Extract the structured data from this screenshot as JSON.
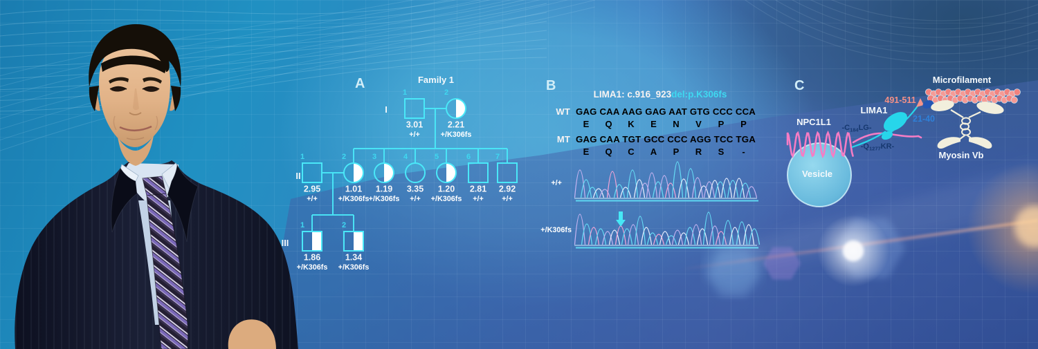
{
  "panels": {
    "a": "A",
    "b": "B",
    "c": "C"
  },
  "pedigree": {
    "title": "Family 1",
    "generations": [
      "I",
      "II",
      "III"
    ],
    "individuals": [
      {
        "gen": 0,
        "num": "1",
        "sex": "male",
        "carrier": false,
        "value": "3.01",
        "genotype": "+/+"
      },
      {
        "gen": 0,
        "num": "2",
        "sex": "female",
        "carrier": true,
        "value": "2.21",
        "genotype": "+/K306fs"
      },
      {
        "gen": 1,
        "num": "1",
        "sex": "male",
        "carrier": false,
        "value": "2.95",
        "genotype": "+/+"
      },
      {
        "gen": 1,
        "num": "2",
        "sex": "female",
        "carrier": true,
        "value": "1.01",
        "genotype": "+/K306fs"
      },
      {
        "gen": 1,
        "num": "3",
        "sex": "female",
        "carrier": true,
        "value": "1.19",
        "genotype": "+/K306fs"
      },
      {
        "gen": 1,
        "num": "4",
        "sex": "female",
        "carrier": false,
        "value": "3.35",
        "genotype": "+/+"
      },
      {
        "gen": 1,
        "num": "5",
        "sex": "female",
        "carrier": true,
        "value": "1.20",
        "genotype": "+/K306fs"
      },
      {
        "gen": 1,
        "num": "6",
        "sex": "male",
        "carrier": false,
        "value": "2.81",
        "genotype": "+/+"
      },
      {
        "gen": 1,
        "num": "7",
        "sex": "male",
        "carrier": false,
        "value": "2.92",
        "genotype": "+/+"
      },
      {
        "gen": 2,
        "num": "1",
        "sex": "male",
        "carrier": true,
        "value": "1.86",
        "genotype": "+/K306fs"
      },
      {
        "gen": 2,
        "num": "2",
        "sex": "male",
        "carrier": true,
        "value": "1.34",
        "genotype": "+/K306fs"
      }
    ]
  },
  "sequence": {
    "title_main": "LIMA1: c.916_923",
    "title_accent": "del:p.K306fs",
    "wt_label": "WT",
    "mt_label": "MT",
    "wt_codons": [
      [
        [
          "GAG",
          "w"
        ]
      ],
      [
        [
          "CAA",
          "w"
        ]
      ],
      [
        [
          "AAG",
          "w"
        ]
      ],
      [
        [
          "GAG",
          "w"
        ]
      ],
      [
        [
          "AA",
          "w"
        ],
        [
          "T",
          "c"
        ]
      ],
      [
        [
          "G",
          "w"
        ],
        [
          "T",
          "c"
        ],
        [
          "G",
          "w"
        ]
      ],
      [
        [
          "CCC",
          "w"
        ]
      ],
      [
        [
          "CCA",
          "w"
        ]
      ]
    ],
    "wt_aa": [
      [
        "E",
        "w"
      ],
      [
        "Q",
        "w"
      ],
      [
        "K",
        "c"
      ],
      [
        "E",
        "c"
      ],
      [
        "N",
        "c"
      ],
      [
        "V",
        "c"
      ],
      [
        "P",
        "c"
      ],
      [
        "P",
        "c"
      ]
    ],
    "mt_codons": [
      [
        [
          "GAG",
          "w"
        ]
      ],
      [
        [
          "CAA",
          "w"
        ]
      ],
      [
        [
          "TGT",
          "c"
        ]
      ],
      [
        [
          "GCC",
          "w"
        ]
      ],
      [
        [
          "CCC",
          "w"
        ]
      ],
      [
        [
          "AGG",
          "w"
        ]
      ],
      [
        [
          "T",
          "c"
        ],
        [
          "CC",
          "w"
        ]
      ],
      [
        [
          "T",
          "c"
        ],
        [
          "GA",
          "w"
        ]
      ]
    ],
    "mt_aa": [
      [
        "E",
        "w"
      ],
      [
        "Q",
        "w"
      ],
      [
        "C",
        "c"
      ],
      [
        "A",
        "c"
      ],
      [
        "P",
        "c"
      ],
      [
        "R",
        "c"
      ],
      [
        "S",
        "c"
      ],
      [
        "-",
        "c"
      ]
    ],
    "trace_colors": [
      "#c3b2f0",
      "#66dcf5",
      "#e9f0ff",
      "#f2a4d6"
    ],
    "traces": [
      {
        "label": "+/+",
        "arrow_at": null,
        "peaks": [
          [
            8,
            40,
            0
          ],
          [
            17,
            26,
            1
          ],
          [
            26,
            15,
            1
          ],
          [
            35,
            13,
            2
          ],
          [
            44,
            12,
            0
          ],
          [
            55,
            38,
            3
          ],
          [
            65,
            19,
            1
          ],
          [
            74,
            15,
            2
          ],
          [
            84,
            40,
            1
          ],
          [
            94,
            26,
            2
          ],
          [
            102,
            21,
            0
          ],
          [
            112,
            36,
            0
          ],
          [
            121,
            23,
            1
          ],
          [
            130,
            32,
            0
          ],
          [
            139,
            21,
            3
          ],
          [
            149,
            52,
            1
          ],
          [
            158,
            27,
            2
          ],
          [
            168,
            42,
            1
          ],
          [
            178,
            29,
            0
          ],
          [
            187,
            17,
            2
          ],
          [
            195,
            23,
            0
          ],
          [
            203,
            25,
            2
          ],
          [
            211,
            23,
            1
          ],
          [
            220,
            28,
            2
          ],
          [
            229,
            25,
            1
          ],
          [
            238,
            28,
            2
          ],
          [
            247,
            21,
            1
          ],
          [
            256,
            16,
            0
          ]
        ]
      },
      {
        "label": "+/K306fs",
        "arrow_at": 67,
        "peaks": [
          [
            8,
            44,
            0
          ],
          [
            18,
            30,
            1
          ],
          [
            28,
            25,
            3
          ],
          [
            38,
            23,
            1
          ],
          [
            48,
            19,
            0
          ],
          [
            58,
            21,
            2
          ],
          [
            67,
            27,
            3
          ],
          [
            76,
            23,
            1
          ],
          [
            85,
            29,
            0
          ],
          [
            95,
            41,
            1
          ],
          [
            104,
            25,
            2
          ],
          [
            113,
            17,
            1
          ],
          [
            122,
            15,
            3
          ],
          [
            131,
            19,
            2
          ],
          [
            140,
            13,
            1
          ],
          [
            149,
            21,
            0
          ],
          [
            158,
            17,
            2
          ],
          [
            167,
            25,
            1
          ],
          [
            176,
            29,
            0
          ],
          [
            185,
            23,
            2
          ],
          [
            194,
            47,
            1
          ],
          [
            203,
            27,
            0
          ],
          [
            212,
            19,
            3
          ],
          [
            222,
            35,
            1
          ],
          [
            232,
            25,
            2
          ],
          [
            242,
            33,
            1
          ],
          [
            252,
            29,
            2
          ],
          [
            260,
            23,
            1
          ]
        ]
      }
    ]
  },
  "model": {
    "microfilament_label": "Microfilament",
    "myosin_label": "Myosin Vb",
    "lima1_label": "LIMA1",
    "npc1l1_label": "NPC1L1",
    "vesicle_label": "Vesicle",
    "actin_binding_region": "491-511",
    "myosin_binding_region": "21-40",
    "lima1_motif": {
      "pre": "-C",
      "sub": "184",
      "post": "LG-"
    },
    "npc1l1_motif": {
      "pre": "-Q",
      "sub": "1277",
      "post": "KR-"
    },
    "bead_rows": [
      19,
      18
    ],
    "colors": {
      "actin": "#f2827e",
      "actin_alt": "#f59b96",
      "lima1": "#27d6ea",
      "npc1l1": "#f57cc4",
      "myosin": "#f2efdd",
      "myosin_patch": "#2457b5",
      "vesicle": "#7fd0e9",
      "region_actin_text": "#f49086",
      "region_myosin_text": "#2f80d8"
    }
  }
}
